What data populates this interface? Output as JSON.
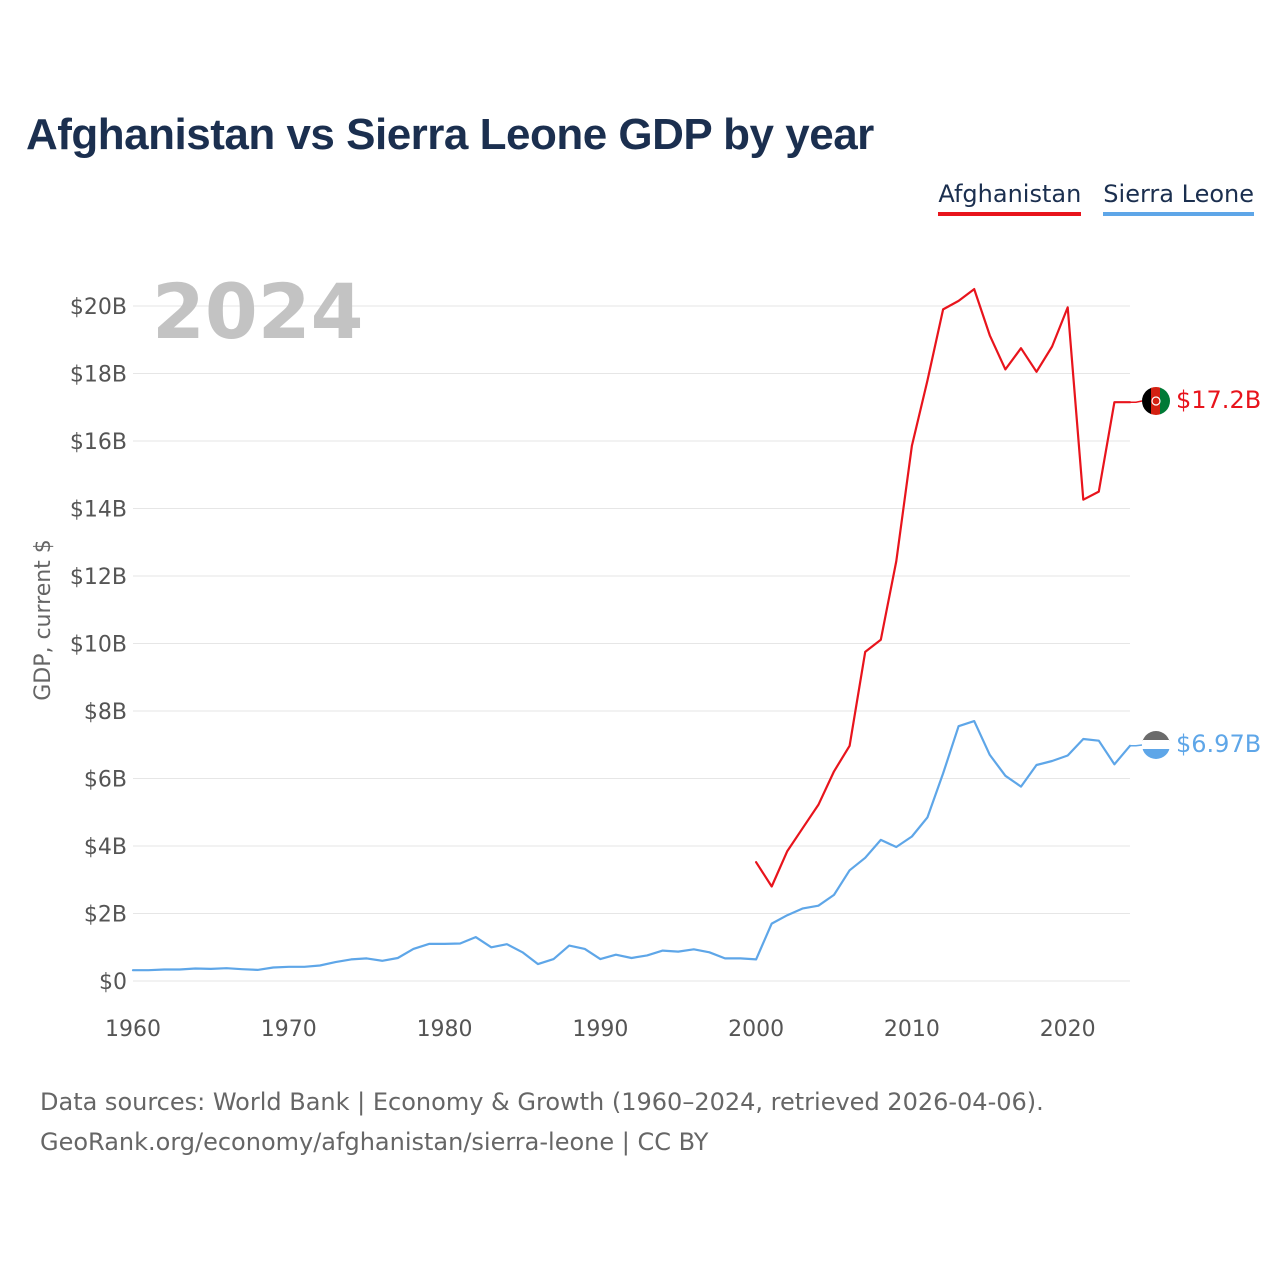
{
  "title": "Afghanistan vs Sierra Leone GDP by year",
  "legend": [
    {
      "label": "Afghanistan",
      "color": "#e8141c"
    },
    {
      "label": "Sierra Leone",
      "color": "#5ea6e8"
    }
  ],
  "year_watermark": "2024",
  "source": {
    "line1": "Data sources: World Bank | Economy & Growth (1960–2024, retrieved 2026-04-06).",
    "line2": "GeoRank.org/economy/afghanistan/sierra-leone | CC BY"
  },
  "chart_data": {
    "type": "line",
    "title": "Afghanistan vs Sierra Leone GDP by year",
    "xlabel": "",
    "ylabel": "GDP, current $",
    "xlim": [
      1960,
      2024
    ],
    "ylim": [
      0,
      20
    ],
    "x_ticks": [
      1960,
      1970,
      1980,
      1990,
      2000,
      2010,
      2020
    ],
    "y_ticks": [
      0,
      2,
      4,
      6,
      8,
      10,
      12,
      14,
      16,
      18,
      20
    ],
    "y_tick_labels": [
      "$0",
      "$2B",
      "$4B",
      "$6B",
      "$8B",
      "$10B",
      "$12B",
      "$14B",
      "$16B",
      "$18B",
      "$20B"
    ],
    "grid": true,
    "legend_position": "top-right",
    "series": [
      {
        "name": "Afghanistan",
        "color": "#e8141c",
        "end_label": "$17.2B",
        "x": [
          2000,
          2001,
          2002,
          2003,
          2004,
          2005,
          2006,
          2007,
          2008,
          2009,
          2010,
          2011,
          2012,
          2013,
          2014,
          2015,
          2016,
          2017,
          2018,
          2019,
          2020,
          2021,
          2022,
          2023,
          2024
        ],
        "values": [
          3.52,
          2.8,
          3.85,
          4.54,
          5.22,
          6.21,
          6.97,
          9.75,
          10.11,
          12.44,
          15.86,
          17.8,
          19.9,
          20.15,
          20.5,
          19.13,
          18.12,
          18.75,
          18.05,
          18.8,
          19.96,
          14.26,
          14.5,
          17.15,
          17.15
        ]
      },
      {
        "name": "Sierra Leone",
        "color": "#5ea6e8",
        "end_label": "$6.97B",
        "x": [
          1960,
          1961,
          1962,
          1963,
          1964,
          1965,
          1966,
          1967,
          1968,
          1969,
          1970,
          1971,
          1972,
          1973,
          1974,
          1975,
          1976,
          1977,
          1978,
          1979,
          1980,
          1981,
          1982,
          1983,
          1984,
          1985,
          1986,
          1987,
          1988,
          1989,
          1990,
          1991,
          1992,
          1993,
          1994,
          1995,
          1996,
          1997,
          1998,
          1999,
          2000,
          2001,
          2002,
          2003,
          2004,
          2005,
          2006,
          2007,
          2008,
          2009,
          2010,
          2011,
          2012,
          2013,
          2014,
          2015,
          2016,
          2017,
          2018,
          2019,
          2020,
          2021,
          2022,
          2023,
          2024
        ],
        "values": [
          0.32,
          0.32,
          0.34,
          0.34,
          0.37,
          0.36,
          0.38,
          0.35,
          0.33,
          0.4,
          0.42,
          0.42,
          0.46,
          0.56,
          0.64,
          0.67,
          0.6,
          0.68,
          0.95,
          1.1,
          1.1,
          1.11,
          1.3,
          1.0,
          1.09,
          0.85,
          0.5,
          0.65,
          1.05,
          0.95,
          0.65,
          0.78,
          0.68,
          0.76,
          0.9,
          0.87,
          0.94,
          0.85,
          0.67,
          0.67,
          0.64,
          1.7,
          1.95,
          2.15,
          2.23,
          2.55,
          3.28,
          3.65,
          4.18,
          3.97,
          4.28,
          4.85,
          6.15,
          7.55,
          7.7,
          6.7,
          6.08,
          5.76,
          6.4,
          6.52,
          6.68,
          7.17,
          7.12,
          6.42,
          6.97
        ]
      }
    ]
  }
}
